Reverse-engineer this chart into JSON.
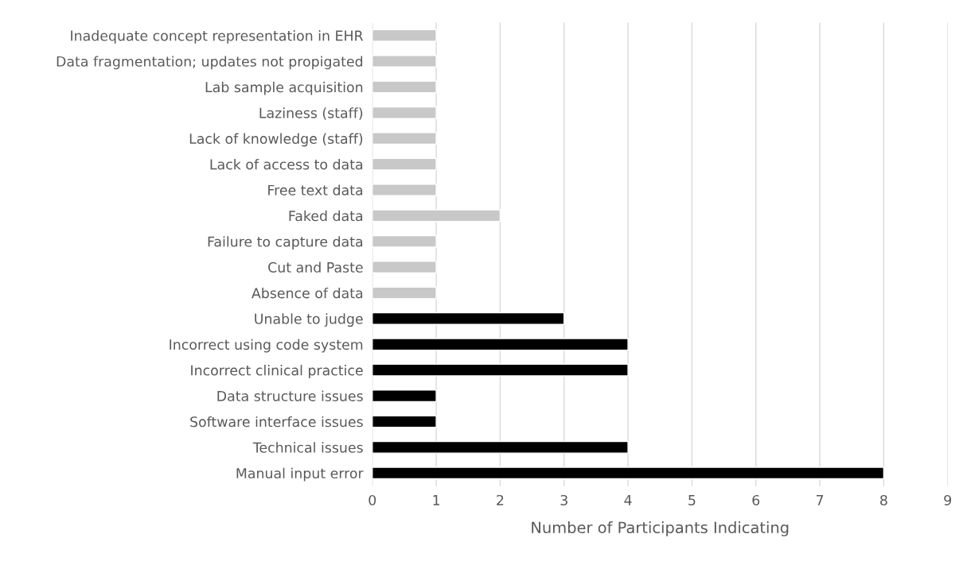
{
  "chart_data": {
    "type": "bar",
    "orientation": "horizontal",
    "xlabel": "Number of Participants Indicating",
    "categories": [
      "Inadequate concept representation in EHR",
      "Data fragmentation; updates not propigated",
      "Lab sample acquisition",
      "Laziness (staff)",
      "Lack of knowledge (staff)",
      "Lack of access to data",
      "Free text data",
      "Faked data",
      "Failure to capture data",
      "Cut and Paste",
      "Absence of data",
      "Unable to judge",
      "Incorrect using code system",
      "Incorrect clinical practice",
      "Data structure issues",
      "Software interface issues",
      "Technical issues",
      "Manual input error"
    ],
    "values": [
      1,
      1,
      1,
      1,
      1,
      1,
      1,
      2,
      1,
      1,
      1,
      3,
      4,
      4,
      1,
      1,
      4,
      8
    ],
    "colors": [
      "#c8c8c8",
      "#c8c8c8",
      "#c8c8c8",
      "#c8c8c8",
      "#c8c8c8",
      "#c8c8c8",
      "#c8c8c8",
      "#c8c8c8",
      "#c8c8c8",
      "#c8c8c8",
      "#c8c8c8",
      "#000000",
      "#000000",
      "#000000",
      "#000000",
      "#000000",
      "#000000",
      "#000000"
    ],
    "xlim": [
      0,
      9
    ],
    "xticks": [
      0,
      1,
      2,
      3,
      4,
      5,
      6,
      7,
      8,
      9
    ],
    "grid": "x",
    "legend": false
  }
}
